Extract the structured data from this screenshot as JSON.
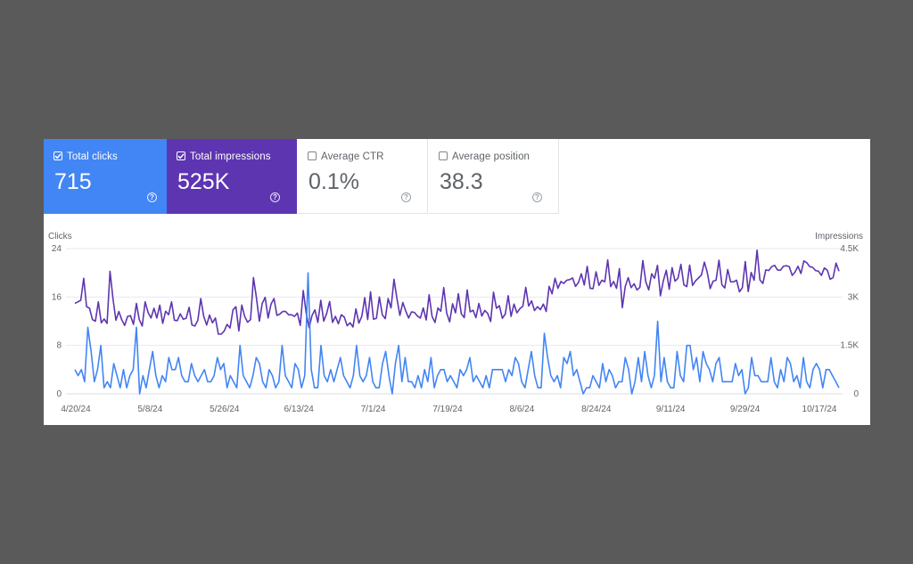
{
  "colors": {
    "clicks": "#4285f4",
    "impressions": "#5e35b1",
    "clicks_card": "#4285f4",
    "impressions_card": "#5e35b1",
    "grid": "#e8eaed",
    "axis_text": "#5f6368"
  },
  "cards": [
    {
      "label": "Total clicks",
      "value": "715",
      "checked": true,
      "icon": "help-icon"
    },
    {
      "label": "Total impressions",
      "value": "525K",
      "checked": true,
      "icon": "help-icon"
    },
    {
      "label": "Average CTR",
      "value": "0.1%",
      "checked": false,
      "icon": "help-icon"
    },
    {
      "label": "Average position",
      "value": "38.3",
      "checked": false,
      "icon": "help-icon"
    }
  ],
  "chart_data": {
    "type": "line",
    "left_axis_title": "Clicks",
    "right_axis_title": "Impressions",
    "left_ticks": [
      "24",
      "16",
      "8",
      "0"
    ],
    "right_ticks": [
      "4.5K",
      "3K",
      "1.5K",
      "0"
    ],
    "ylim_left": [
      0,
      24
    ],
    "ylim_right": [
      0,
      4500
    ],
    "x_tick_labels": [
      "4/20/24",
      "5/8/24",
      "5/26/24",
      "6/13/24",
      "7/1/24",
      "7/19/24",
      "8/6/24",
      "8/24/24",
      "9/11/24",
      "9/29/24",
      "10/17/24"
    ],
    "grid": true,
    "series": [
      {
        "name": "Clicks",
        "axis": "left",
        "values": [
          4,
          3,
          4,
          2,
          11,
          7,
          2,
          4,
          8,
          1,
          2,
          1,
          5,
          3,
          1,
          4,
          1,
          3,
          4,
          11,
          0,
          3,
          1,
          4,
          7,
          3,
          1,
          3,
          2,
          6,
          4,
          4,
          6,
          3,
          2,
          2,
          5,
          3,
          2,
          3,
          4,
          2,
          2,
          3,
          6,
          4,
          5,
          1,
          3,
          2,
          1,
          8,
          3,
          2,
          1,
          3,
          6,
          5,
          2,
          1,
          4,
          3,
          1,
          2,
          8,
          3,
          2,
          1,
          5,
          4,
          1,
          3,
          20,
          4,
          1,
          1,
          8,
          3,
          2,
          4,
          2,
          4,
          6,
          3,
          2,
          1,
          3,
          8,
          3,
          2,
          3,
          6,
          2,
          1,
          1,
          5,
          7,
          3,
          0,
          5,
          8,
          2,
          6,
          2,
          2,
          1,
          3,
          1,
          4,
          2,
          6,
          1,
          3,
          4,
          4,
          2,
          3,
          2,
          1,
          4,
          3,
          4,
          6,
          2,
          3,
          2,
          1,
          3,
          1,
          4,
          4,
          4,
          4,
          2,
          4,
          3,
          6,
          5,
          2,
          1,
          4,
          7,
          3,
          1,
          1,
          10,
          6,
          3,
          2,
          3,
          1,
          6,
          5,
          7,
          3,
          4,
          2,
          0,
          1,
          1,
          3,
          2,
          1,
          5,
          2,
          4,
          3,
          1,
          2,
          2,
          6,
          4,
          0,
          2,
          6,
          2,
          7,
          3,
          1,
          3,
          12,
          2,
          6,
          2,
          1,
          1,
          7,
          3,
          2,
          8,
          8,
          4,
          6,
          2,
          7,
          5,
          4,
          2,
          5,
          6,
          2,
          2,
          2,
          2,
          5,
          3,
          4,
          0,
          1,
          6,
          3,
          3,
          2,
          2,
          2,
          6,
          2,
          1,
          4,
          2,
          6,
          5,
          2,
          3,
          1,
          6,
          2,
          1,
          4,
          5,
          4,
          1,
          4,
          4,
          3,
          2,
          1
        ]
      },
      {
        "name": "Impressions",
        "axis": "right",
        "values": [
          2800,
          2850,
          2900,
          3580,
          2700,
          2650,
          2300,
          2250,
          2850,
          2200,
          2320,
          2180,
          3800,
          2950,
          2280,
          2550,
          2300,
          2120,
          2400,
          2420,
          2150,
          2800,
          2300,
          2100,
          2850,
          2520,
          2350,
          2650,
          2350,
          2750,
          2180,
          2560,
          2450,
          2850,
          2280,
          2270,
          2480,
          2310,
          2340,
          2680,
          2130,
          2100,
          2280,
          2950,
          2400,
          2130,
          2440,
          2200,
          2350,
          1850,
          1850,
          1950,
          2150,
          2040,
          2600,
          2700,
          1950,
          2750,
          2400,
          2220,
          2300,
          3600,
          2980,
          2250,
          2800,
          2990,
          2350,
          2780,
          2950,
          2430,
          2470,
          2550,
          2550,
          2450,
          2450,
          2400,
          2500,
          2120,
          3200,
          2500,
          2050,
          2430,
          2600,
          2210,
          2900,
          2250,
          2490,
          2860,
          2210,
          2400,
          2170,
          2450,
          2380,
          2110,
          2200,
          2070,
          2630,
          2190,
          2400,
          2980,
          2300,
          3160,
          2310,
          2340,
          3000,
          2450,
          2330,
          2950,
          2660,
          3550,
          2950,
          2430,
          2830,
          2570,
          2350,
          2540,
          2520,
          2410,
          2350,
          2660,
          2290,
          3070,
          2400,
          2210,
          2660,
          2560,
          3290,
          2500,
          2230,
          2790,
          2510,
          3100,
          2480,
          2360,
          3220,
          2540,
          2590,
          2360,
          2800,
          2410,
          2580,
          2490,
          2240,
          3150,
          2650,
          2730,
          2340,
          2470,
          3040,
          2400,
          2780,
          2510,
          2640,
          2710,
          3300,
          2720,
          2880,
          2580,
          2700,
          2610,
          2780,
          2550,
          3330,
          3100,
          3580,
          3270,
          3480,
          3420,
          3520,
          3540,
          3590,
          3330,
          3450,
          3720,
          3370,
          3950,
          3270,
          3260,
          3780,
          3360,
          3520,
          3470,
          4150,
          3320,
          3480,
          3270,
          3880,
          2670,
          3330,
          3600,
          3290,
          3410,
          3220,
          3300,
          4130,
          3470,
          3220,
          3720,
          3580,
          3980,
          3040,
          3500,
          3830,
          3240,
          3910,
          3490,
          3580,
          4010,
          3380,
          3320,
          3990,
          3360,
          3500,
          3590,
          3680,
          4080,
          3770,
          3260,
          3490,
          3520,
          4140,
          3380,
          3280,
          3850,
          3470,
          3470,
          3520,
          3160,
          3290,
          4100,
          3170,
          3760,
          3520,
          4450,
          3530,
          3420,
          3840,
          3820,
          3940,
          3980,
          3840,
          3830,
          3950,
          3970,
          3940,
          3670,
          3770,
          3950,
          3730,
          4120,
          4060,
          3940,
          3920,
          3820,
          3800,
          3670,
          3900,
          3830,
          3550,
          3600,
          4050,
          3800
        ]
      }
    ]
  }
}
